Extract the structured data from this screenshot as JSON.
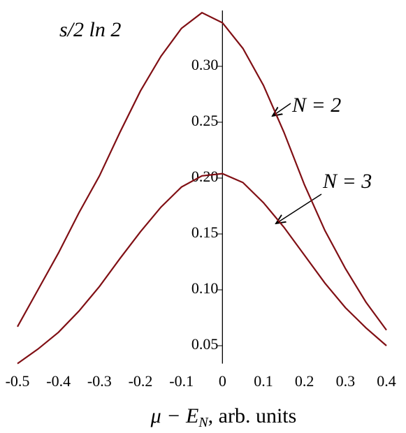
{
  "chart_data": {
    "type": "line",
    "y_label": "s/2 ln 2",
    "x_label": {
      "main": "μ − E",
      "sub": "N",
      "rest": ",  arb. units"
    },
    "annotations": [
      "N = 2",
      "N = 3"
    ],
    "x": [
      -0.5,
      -0.45,
      -0.4,
      -0.35,
      -0.3,
      -0.25,
      -0.2,
      -0.15,
      -0.1,
      -0.05,
      0,
      0.05,
      0.1,
      0.15,
      0.2,
      0.25,
      0.3,
      0.35,
      0.4
    ],
    "series": [
      {
        "color": "#800f14",
        "values": [
          0.067,
          0.1,
          0.133,
          0.169,
          0.202,
          0.241,
          0.278,
          0.309,
          0.334,
          0.348,
          0.339,
          0.316,
          0.283,
          0.241,
          0.194,
          0.153,
          0.119,
          0.089,
          0.064
        ]
      },
      {
        "color": "#800f14",
        "values": [
          0.034,
          0.047,
          0.062,
          0.081,
          0.103,
          0.128,
          0.152,
          0.174,
          0.192,
          0.202,
          0.204,
          0.196,
          0.178,
          0.156,
          0.131,
          0.106,
          0.084,
          0.066,
          0.05
        ]
      }
    ],
    "xlim": [
      -0.5,
      0.4
    ],
    "ylim": [
      0.034,
      0.35
    ],
    "xticks": [
      -0.5,
      -0.4,
      -0.3,
      -0.2,
      -0.1,
      0,
      0.1,
      0.2,
      0.3,
      0.4
    ],
    "yticks": [
      0.05,
      {
        "value": 0.1,
        "label": "0.10"
      },
      0.15,
      {
        "value": 0.2,
        "label": "0.20"
      },
      0.25,
      {
        "value": 0.3,
        "label": "0.30"
      }
    ]
  }
}
